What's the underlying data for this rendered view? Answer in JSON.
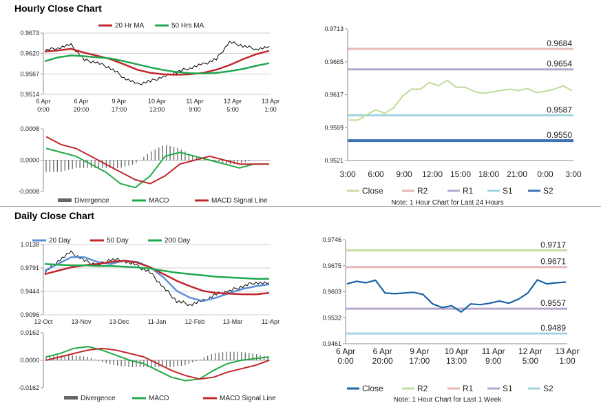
{
  "titles": {
    "hourly": "Hourly Close Chart",
    "daily": "Daily Close Chart"
  },
  "colors": {
    "close_hourly": "#c4dea0",
    "r2": "#e7b6b6",
    "r1": "#b6a8cc",
    "s1": "#9fd5e0",
    "s2": "#3f72b4",
    "ma20": "#c0272d",
    "ma50": "#1fa84f",
    "ma200": "#1fa84f",
    "daily_ma20": "#5b8fd6",
    "macd": "#22aa44",
    "signal": "#c0272d",
    "divergence": "#666666",
    "price": "#000000",
    "close_weekly": "#1a63a8"
  },
  "chart_data": [
    {
      "id": "hourly_price",
      "type": "line",
      "legend": [
        "20 Hr MA",
        "50 Hrs MA"
      ],
      "yticks": [
        "0.9673",
        "0.9620",
        "0.9567",
        "0.9514"
      ],
      "ylim": [
        0.9514,
        0.9673
      ],
      "xticks": [
        [
          "6 Apr",
          "0:00"
        ],
        [
          "6 Apr",
          "20:00"
        ],
        [
          "9 Apr",
          "17:00"
        ],
        [
          "10 Apr",
          "13:00"
        ],
        [
          "11 Apr",
          "9:00"
        ],
        [
          "12 Apr",
          "5:00"
        ],
        [
          "13 Apr",
          "1:00"
        ]
      ],
      "series": [
        {
          "name": "20 Hr MA",
          "values": [
            0.9625,
            0.9628,
            0.9632,
            0.9622,
            0.9614,
            0.9605,
            0.9592,
            0.9578,
            0.957,
            0.9566,
            0.9565,
            0.9566,
            0.957,
            0.9578,
            0.959,
            0.9605,
            0.9618,
            0.9627
          ]
        },
        {
          "name": "50 Hrs MA",
          "values": [
            0.96,
            0.961,
            0.9615,
            0.9613,
            0.961,
            0.9607,
            0.96,
            0.9592,
            0.9584,
            0.9577,
            0.9572,
            0.9569,
            0.9568,
            0.957,
            0.9574,
            0.958,
            0.9588,
            0.9595
          ]
        },
        {
          "name": "Price",
          "values": [
            0.9628,
            0.9635,
            0.9642,
            0.9603,
            0.9596,
            0.9582,
            0.9558,
            0.954,
            0.9548,
            0.956,
            0.9572,
            0.9583,
            0.9592,
            0.9605,
            0.965,
            0.964,
            0.9632,
            0.9635
          ]
        }
      ]
    },
    {
      "id": "hourly_macd",
      "type": "line",
      "yticks": [
        "0.0008",
        "0.0000",
        "-0.0008"
      ],
      "ylim": [
        -0.0008,
        0.0008
      ],
      "legend": [
        "Divergence",
        "MACD",
        "MACD Signal Line"
      ],
      "series": [
        {
          "name": "MACD",
          "values": [
            0.0003,
            0.0002,
            0.0001,
            -0.0001,
            -0.0003,
            -0.0006,
            -0.0007,
            -0.0004,
            0.0001,
            0.0002,
            0.0001,
            0.0,
            -0.0001,
            -0.0002,
            -0.0001,
            -0.0001
          ]
        },
        {
          "name": "MACD Signal Line",
          "values": [
            0.0006,
            0.0004,
            0.0003,
            0.0001,
            -0.0001,
            -0.0003,
            -0.0005,
            -0.0006,
            -0.0004,
            -0.0001,
            0.0,
            0.0001,
            0.0,
            -0.0001,
            -0.0001,
            -0.0001
          ]
        },
        {
          "name": "Divergence",
          "values": [
            -0.0003,
            -0.0003,
            -0.0002,
            -0.0002,
            -0.0002,
            -0.0002,
            -0.0001,
            0.0002,
            0.0004,
            0.0003,
            0.0001,
            0.0,
            -0.0001,
            -0.0001,
            0.0,
            0.0
          ]
        }
      ]
    },
    {
      "id": "hourly_levels",
      "type": "line",
      "yticks": [
        "0.9713",
        "0.9665",
        "0.9617",
        "0.9569",
        "0.9521"
      ],
      "ylim": [
        0.9521,
        0.9713
      ],
      "xticks": [
        "3:00",
        "6:00",
        "9:00",
        "12:00",
        "15:00",
        "18:00",
        "21:00",
        "0:00",
        "3:00"
      ],
      "levels": [
        {
          "name": "R2",
          "value": 0.9684,
          "label": "0.9684"
        },
        {
          "name": "R1",
          "value": 0.9654,
          "label": "0.9654"
        },
        {
          "name": "S1",
          "value": 0.9587,
          "label": "0.9587"
        },
        {
          "name": "S2",
          "value": 0.955,
          "label": "0.9550"
        }
      ],
      "series": [
        {
          "name": "Close",
          "values": [
            0.958,
            0.958,
            0.9588,
            0.9595,
            0.959,
            0.9598,
            0.9615,
            0.9625,
            0.9625,
            0.9635,
            0.963,
            0.9638,
            0.9628,
            0.9628,
            0.9622,
            0.9619,
            0.9621,
            0.9623,
            0.9625,
            0.9623,
            0.9626,
            0.962,
            0.9622,
            0.9625,
            0.963,
            0.9623
          ]
        }
      ],
      "legend": [
        "Close",
        "R2",
        "R1",
        "S1",
        "S2"
      ],
      "note": "Note: 1 Hour Chart for Last 24 Hours"
    },
    {
      "id": "daily_price",
      "type": "line",
      "legend": [
        "20 Day",
        "50 Day",
        "200 Day"
      ],
      "yticks": [
        "1.0138",
        "0.9791",
        "0.9444",
        "0.9096"
      ],
      "ylim": [
        0.9096,
        1.0138
      ],
      "xticks": [
        "12-Oct",
        "13-Nov",
        "13-Dec",
        "11-Jan",
        "12-Feb",
        "13-Mar",
        "11-Apr"
      ],
      "series": [
        {
          "name": "20 Day",
          "values": [
            0.975,
            0.985,
            0.995,
            0.995,
            0.988,
            0.985,
            0.99,
            0.988,
            0.98,
            0.965,
            0.945,
            0.935,
            0.93,
            0.935,
            0.942,
            0.948,
            0.952,
            0.955
          ]
        },
        {
          "name": "50 Day",
          "values": [
            0.97,
            0.975,
            0.98,
            0.983,
            0.985,
            0.988,
            0.99,
            0.987,
            0.98,
            0.97,
            0.96,
            0.952,
            0.945,
            0.942,
            0.941,
            0.94,
            0.94,
            0.942
          ]
        },
        {
          "name": "200 Day",
          "values": [
            0.985,
            0.984,
            0.983,
            0.983,
            0.982,
            0.982,
            0.981,
            0.98,
            0.978,
            0.975,
            0.972,
            0.97,
            0.968,
            0.966,
            0.965,
            0.964,
            0.963,
            0.963
          ]
        },
        {
          "name": "Price",
          "values": [
            0.972,
            0.99,
            1.002,
            0.99,
            0.983,
            0.992,
            0.99,
            0.982,
            0.972,
            0.95,
            0.93,
            0.925,
            0.93,
            0.94,
            0.945,
            0.952,
            0.958,
            0.955
          ]
        }
      ]
    },
    {
      "id": "daily_macd",
      "type": "line",
      "yticks": [
        "0.0162",
        "0.0000",
        "-0.0162"
      ],
      "ylim": [
        -0.0162,
        0.0162
      ],
      "legend": [
        "Divergence",
        "MACD",
        "MACD Signal Line"
      ],
      "series": [
        {
          "name": "MACD",
          "values": [
            0.002,
            0.004,
            0.007,
            0.008,
            0.006,
            0.003,
            0.0,
            -0.002,
            -0.006,
            -0.01,
            -0.012,
            -0.011,
            -0.006,
            -0.002,
            0.0,
            0.001,
            0.002
          ]
        },
        {
          "name": "MACD Signal Line",
          "values": [
            0.0,
            0.002,
            0.004,
            0.006,
            0.007,
            0.006,
            0.004,
            0.002,
            -0.002,
            -0.006,
            -0.009,
            -0.011,
            -0.01,
            -0.007,
            -0.005,
            -0.003,
            0.0
          ]
        },
        {
          "name": "Divergence",
          "values": [
            0.002,
            0.003,
            0.003,
            0.002,
            -0.001,
            -0.003,
            -0.004,
            -0.004,
            -0.004,
            -0.004,
            -0.003,
            0.0,
            0.004,
            0.005,
            0.005,
            0.004,
            0.002
          ]
        }
      ]
    },
    {
      "id": "daily_levels",
      "type": "line",
      "yticks": [
        "0.9746",
        "0.9675",
        "0.9603",
        "0.9532",
        "0.9461"
      ],
      "ylim": [
        0.9461,
        0.9746
      ],
      "xticks": [
        [
          "6 Apr",
          "0:00"
        ],
        [
          "6 Apr",
          "20:00"
        ],
        [
          "9 Apr",
          "17:00"
        ],
        [
          "10 Apr",
          "13:00"
        ],
        [
          "11 Apr",
          "9:00"
        ],
        [
          "12 Apr",
          "5:00"
        ],
        [
          "13 Apr",
          "1:00"
        ]
      ],
      "levels": [
        {
          "name": "R2",
          "value": 0.9717,
          "label": "0.9717"
        },
        {
          "name": "R1",
          "value": 0.9671,
          "label": "0.9671"
        },
        {
          "name": "S1",
          "value": 0.9557,
          "label": "0.9557"
        },
        {
          "name": "S2",
          "value": 0.9489,
          "label": "0.9489"
        }
      ],
      "series": [
        {
          "name": "Close",
          "values": [
            0.9625,
            0.9632,
            0.9628,
            0.9635,
            0.96,
            0.9598,
            0.96,
            0.9602,
            0.9596,
            0.957,
            0.956,
            0.9565,
            0.9548,
            0.957,
            0.9568,
            0.9572,
            0.9578,
            0.9572,
            0.9583,
            0.96,
            0.9636,
            0.9625,
            0.9628,
            0.963
          ]
        }
      ],
      "legend": [
        "Close",
        "R2",
        "R1",
        "S1",
        "S2"
      ],
      "note": "Note: 1 Hour Chart for Last 1 Week"
    }
  ]
}
